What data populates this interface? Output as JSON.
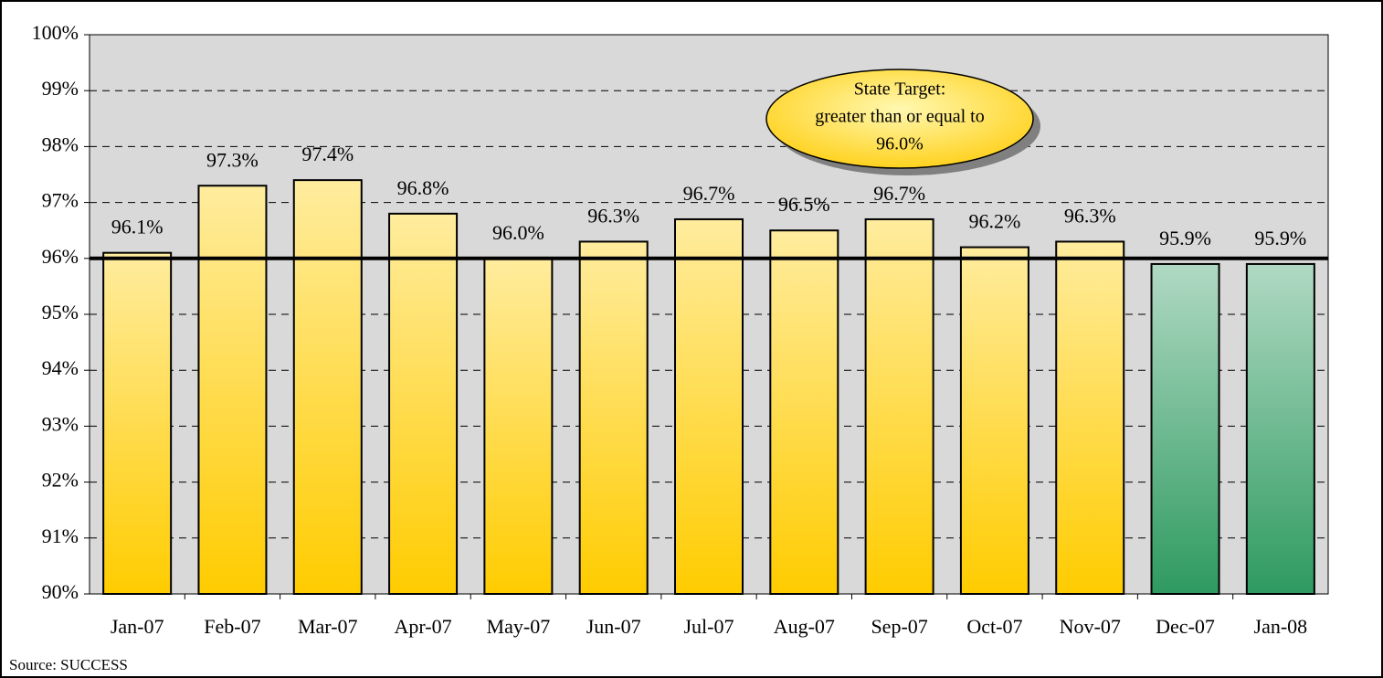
{
  "chart_data": {
    "type": "bar",
    "categories": [
      "Jan-07",
      "Feb-07",
      "Mar-07",
      "Apr-07",
      "May-07",
      "Jun-07",
      "Jul-07",
      "Aug-07",
      "Sep-07",
      "Oct-07",
      "Nov-07",
      "Dec-07",
      "Jan-08"
    ],
    "values": [
      96.1,
      97.3,
      97.4,
      96.8,
      96.0,
      96.3,
      96.7,
      96.5,
      96.7,
      96.2,
      96.3,
      95.9,
      95.9
    ],
    "value_labels": [
      "96.1%",
      "97.3%",
      "97.4%",
      "96.8%",
      "96.0%",
      "96.3%",
      "96.7%",
      "96.5%",
      "96.7%",
      "96.2%",
      "96.3%",
      "95.9%",
      "95.9%"
    ],
    "colors": [
      "#ffcc00",
      "#ffcc00",
      "#ffcc00",
      "#ffcc00",
      "#ffcc00",
      "#ffcc00",
      "#ffcc00",
      "#ffcc00",
      "#ffcc00",
      "#ffcc00",
      "#ffcc00",
      "#2e9a60",
      "#2e9a60"
    ],
    "ylim": [
      90,
      100
    ],
    "yticks": [
      {
        "value": 90,
        "label": "90%"
      },
      {
        "value": 91,
        "label": "91%"
      },
      {
        "value": 92,
        "label": "92%"
      },
      {
        "value": 93,
        "label": "93%"
      },
      {
        "value": 94,
        "label": "94%"
      },
      {
        "value": 95,
        "label": "95%"
      },
      {
        "value": 96,
        "label": "96%"
      },
      {
        "value": 97,
        "label": "97%"
      },
      {
        "value": 98,
        "label": "98%"
      },
      {
        "value": 99,
        "label": "99%"
      },
      {
        "value": 100,
        "label": "100%"
      }
    ],
    "grid": true,
    "target": {
      "value": 96,
      "label_lines": [
        "State Target:",
        "greater than or equal to"
      ],
      "label": "96.0%"
    },
    "source": "Source: SUCCESS"
  }
}
